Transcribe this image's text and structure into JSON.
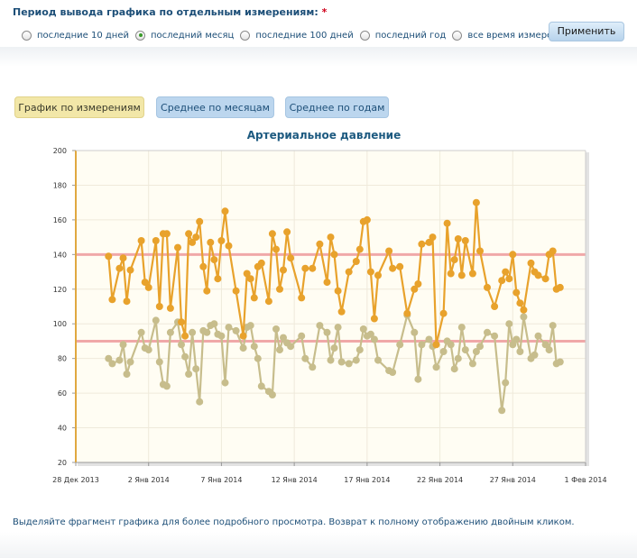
{
  "period": {
    "title": "Период вывода графика по отдельным измерениям:",
    "required_mark": "*",
    "options": [
      "последние 10 дней",
      "последний месяц",
      "последние 100 дней",
      "последний год",
      "все время измерений"
    ],
    "selected_index": 1,
    "apply_label": "Применить"
  },
  "tabs": [
    "График по измерениям",
    "Среднее по месяцам",
    "Среднее по годам"
  ],
  "hint": "Выделяйте фрагмент графика для более подробного просмотра. Возврат к полному отображению двойным кликом.",
  "colors": {
    "systolic": "#e8a22c",
    "diastolic": "#c7bd8c",
    "reference": "#f0a8a8"
  },
  "chart_data": {
    "type": "line",
    "title": "Артериальное давление",
    "x_ticks": [
      "28 Дек 2013",
      "2 Янв 2014",
      "7 Янв 2014",
      "12 Янв 2014",
      "17 Янв 2014",
      "22 Янв 2014",
      "27 Янв 2014",
      "1 Фев 2014"
    ],
    "y_ticks": [
      20,
      40,
      60,
      80,
      100,
      120,
      140,
      160,
      180,
      200
    ],
    "ylim": [
      20,
      200
    ],
    "xlim": [
      "2013-12-28",
      "2014-02-01"
    ],
    "reference_lines": [
      140,
      90
    ],
    "grid": true,
    "series": [
      {
        "x": [
          "2013-12-30 06:00",
          "2013-12-30 12:00",
          "2013-12-31 00:00",
          "2013-12-31 06:00",
          "2013-12-31 12:00",
          "2013-12-31 18:00",
          "2014-01-01 12:00",
          "2014-01-01 18:00",
          "2014-01-02 00:00",
          "2014-01-02 12:00",
          "2014-01-02 18:00",
          "2014-01-03 00:00",
          "2014-01-03 06:00",
          "2014-01-03 12:00",
          "2014-01-04 00:00",
          "2014-01-04 06:00",
          "2014-01-04 12:00",
          "2014-01-04 18:00",
          "2014-01-05 00:00",
          "2014-01-05 06:00",
          "2014-01-05 12:00",
          "2014-01-05 18:00",
          "2014-01-06 00:00",
          "2014-01-06 06:00",
          "2014-01-06 12:00",
          "2014-01-06 18:00",
          "2014-01-07 00:00",
          "2014-01-07 06:00",
          "2014-01-07 12:00",
          "2014-01-08 00:00",
          "2014-01-08 12:00",
          "2014-01-08 18:00",
          "2014-01-09 00:00",
          "2014-01-09 06:00",
          "2014-01-09 12:00",
          "2014-01-09 18:00",
          "2014-01-10 06:00",
          "2014-01-10 12:00",
          "2014-01-10 18:00",
          "2014-01-11 00:00",
          "2014-01-11 06:00",
          "2014-01-11 12:00",
          "2014-01-11 18:00",
          "2014-01-12 12:00",
          "2014-01-12 18:00",
          "2014-01-13 06:00",
          "2014-01-13 18:00",
          "2014-01-14 06:00",
          "2014-01-14 12:00",
          "2014-01-14 18:00",
          "2014-01-15 00:00",
          "2014-01-15 06:00",
          "2014-01-15 18:00",
          "2014-01-16 06:00",
          "2014-01-16 12:00",
          "2014-01-16 18:00",
          "2014-01-17 00:00",
          "2014-01-17 06:00",
          "2014-01-17 12:00",
          "2014-01-17 18:00",
          "2014-01-18 12:00",
          "2014-01-18 18:00",
          "2014-01-19 06:00",
          "2014-01-19 18:00",
          "2014-01-20 06:00",
          "2014-01-20 12:00",
          "2014-01-20 18:00",
          "2014-01-21 06:00",
          "2014-01-21 12:00",
          "2014-01-21 18:00",
          "2014-01-22 06:00",
          "2014-01-22 12:00",
          "2014-01-22 18:00",
          "2014-01-23 00:00",
          "2014-01-23 06:00",
          "2014-01-23 12:00",
          "2014-01-23 18:00",
          "2014-01-24 06:00",
          "2014-01-24 12:00",
          "2014-01-24 18:00",
          "2014-01-25 06:00",
          "2014-01-25 18:00",
          "2014-01-26 06:00",
          "2014-01-26 12:00",
          "2014-01-26 18:00",
          "2014-01-27 00:00",
          "2014-01-27 06:00",
          "2014-01-27 12:00",
          "2014-01-27 18:00",
          "2014-01-28 06:00",
          "2014-01-28 12:00",
          "2014-01-28 18:00",
          "2014-01-29 06:00",
          "2014-01-29 12:00",
          "2014-01-29 18:00",
          "2014-01-30 00:00",
          "2014-01-30 06:00"
        ],
        "values": [
          139,
          114,
          132,
          138,
          113,
          131,
          148,
          124,
          121,
          148,
          110,
          152,
          152,
          109,
          144,
          101,
          93,
          152,
          147,
          150,
          159,
          133,
          119,
          147,
          137,
          126,
          148,
          165,
          145,
          119,
          93,
          129,
          126,
          115,
          133,
          135,
          113,
          152,
          143,
          120,
          131,
          153,
          138,
          115,
          132,
          132,
          146,
          124,
          150,
          140,
          119,
          107,
          130,
          136,
          143,
          159,
          160,
          130,
          103,
          128,
          142,
          132,
          133,
          106,
          120,
          123,
          146,
          147,
          150,
          88,
          106,
          158,
          129,
          137,
          149,
          128,
          148,
          129,
          170,
          142,
          121,
          110,
          125,
          130,
          126,
          140,
          118,
          112,
          108,
          135,
          130,
          128,
          126,
          140,
          142,
          120,
          121
        ]
      },
      {
        "x": [
          "2013-12-30 06:00",
          "2013-12-30 12:00",
          "2013-12-31 00:00",
          "2013-12-31 06:00",
          "2013-12-31 12:00",
          "2013-12-31 18:00",
          "2014-01-01 12:00",
          "2014-01-01 18:00",
          "2014-01-02 00:00",
          "2014-01-02 12:00",
          "2014-01-02 18:00",
          "2014-01-03 00:00",
          "2014-01-03 06:00",
          "2014-01-03 12:00",
          "2014-01-04 00:00",
          "2014-01-04 06:00",
          "2014-01-04 12:00",
          "2014-01-04 18:00",
          "2014-01-05 00:00",
          "2014-01-05 06:00",
          "2014-01-05 12:00",
          "2014-01-05 18:00",
          "2014-01-06 00:00",
          "2014-01-06 06:00",
          "2014-01-06 12:00",
          "2014-01-06 18:00",
          "2014-01-07 00:00",
          "2014-01-07 06:00",
          "2014-01-07 12:00",
          "2014-01-08 00:00",
          "2014-01-08 12:00",
          "2014-01-08 18:00",
          "2014-01-09 00:00",
          "2014-01-09 06:00",
          "2014-01-09 12:00",
          "2014-01-09 18:00",
          "2014-01-10 06:00",
          "2014-01-10 12:00",
          "2014-01-10 18:00",
          "2014-01-11 00:00",
          "2014-01-11 06:00",
          "2014-01-11 12:00",
          "2014-01-11 18:00",
          "2014-01-12 12:00",
          "2014-01-12 18:00",
          "2014-01-13 06:00",
          "2014-01-13 18:00",
          "2014-01-14 06:00",
          "2014-01-14 12:00",
          "2014-01-14 18:00",
          "2014-01-15 00:00",
          "2014-01-15 06:00",
          "2014-01-15 18:00",
          "2014-01-16 06:00",
          "2014-01-16 12:00",
          "2014-01-16 18:00",
          "2014-01-17 00:00",
          "2014-01-17 06:00",
          "2014-01-17 12:00",
          "2014-01-17 18:00",
          "2014-01-18 12:00",
          "2014-01-18 18:00",
          "2014-01-19 06:00",
          "2014-01-19 18:00",
          "2014-01-20 06:00",
          "2014-01-20 12:00",
          "2014-01-20 18:00",
          "2014-01-21 06:00",
          "2014-01-21 12:00",
          "2014-01-21 18:00",
          "2014-01-22 06:00",
          "2014-01-22 12:00",
          "2014-01-22 18:00",
          "2014-01-23 00:00",
          "2014-01-23 06:00",
          "2014-01-23 12:00",
          "2014-01-23 18:00",
          "2014-01-24 06:00",
          "2014-01-24 12:00",
          "2014-01-24 18:00",
          "2014-01-25 06:00",
          "2014-01-25 18:00",
          "2014-01-26 06:00",
          "2014-01-26 12:00",
          "2014-01-26 18:00",
          "2014-01-27 00:00",
          "2014-01-27 06:00",
          "2014-01-27 12:00",
          "2014-01-27 18:00",
          "2014-01-28 06:00",
          "2014-01-28 12:00",
          "2014-01-28 18:00",
          "2014-01-29 06:00",
          "2014-01-29 12:00",
          "2014-01-29 18:00",
          "2014-01-30 00:00",
          "2014-01-30 06:00"
        ],
        "values": [
          80,
          77,
          79,
          88,
          71,
          78,
          95,
          86,
          85,
          102,
          78,
          65,
          64,
          95,
          101,
          88,
          81,
          71,
          95,
          74,
          55,
          96,
          95,
          99,
          100,
          94,
          93,
          66,
          98,
          96,
          86,
          98,
          99,
          87,
          80,
          64,
          61,
          59,
          97,
          85,
          92,
          89,
          87,
          93,
          80,
          75,
          99,
          95,
          79,
          86,
          98,
          78,
          77,
          79,
          85,
          97,
          93,
          94,
          91,
          79,
          73,
          72,
          88,
          105,
          95,
          68,
          88,
          91,
          87,
          75,
          84,
          90,
          88,
          74,
          80,
          98,
          85,
          77,
          84,
          87,
          95,
          93,
          50,
          66,
          100,
          88,
          91,
          84,
          104,
          80,
          82,
          93,
          88,
          85,
          99,
          77,
          78
        ]
      }
    ]
  }
}
